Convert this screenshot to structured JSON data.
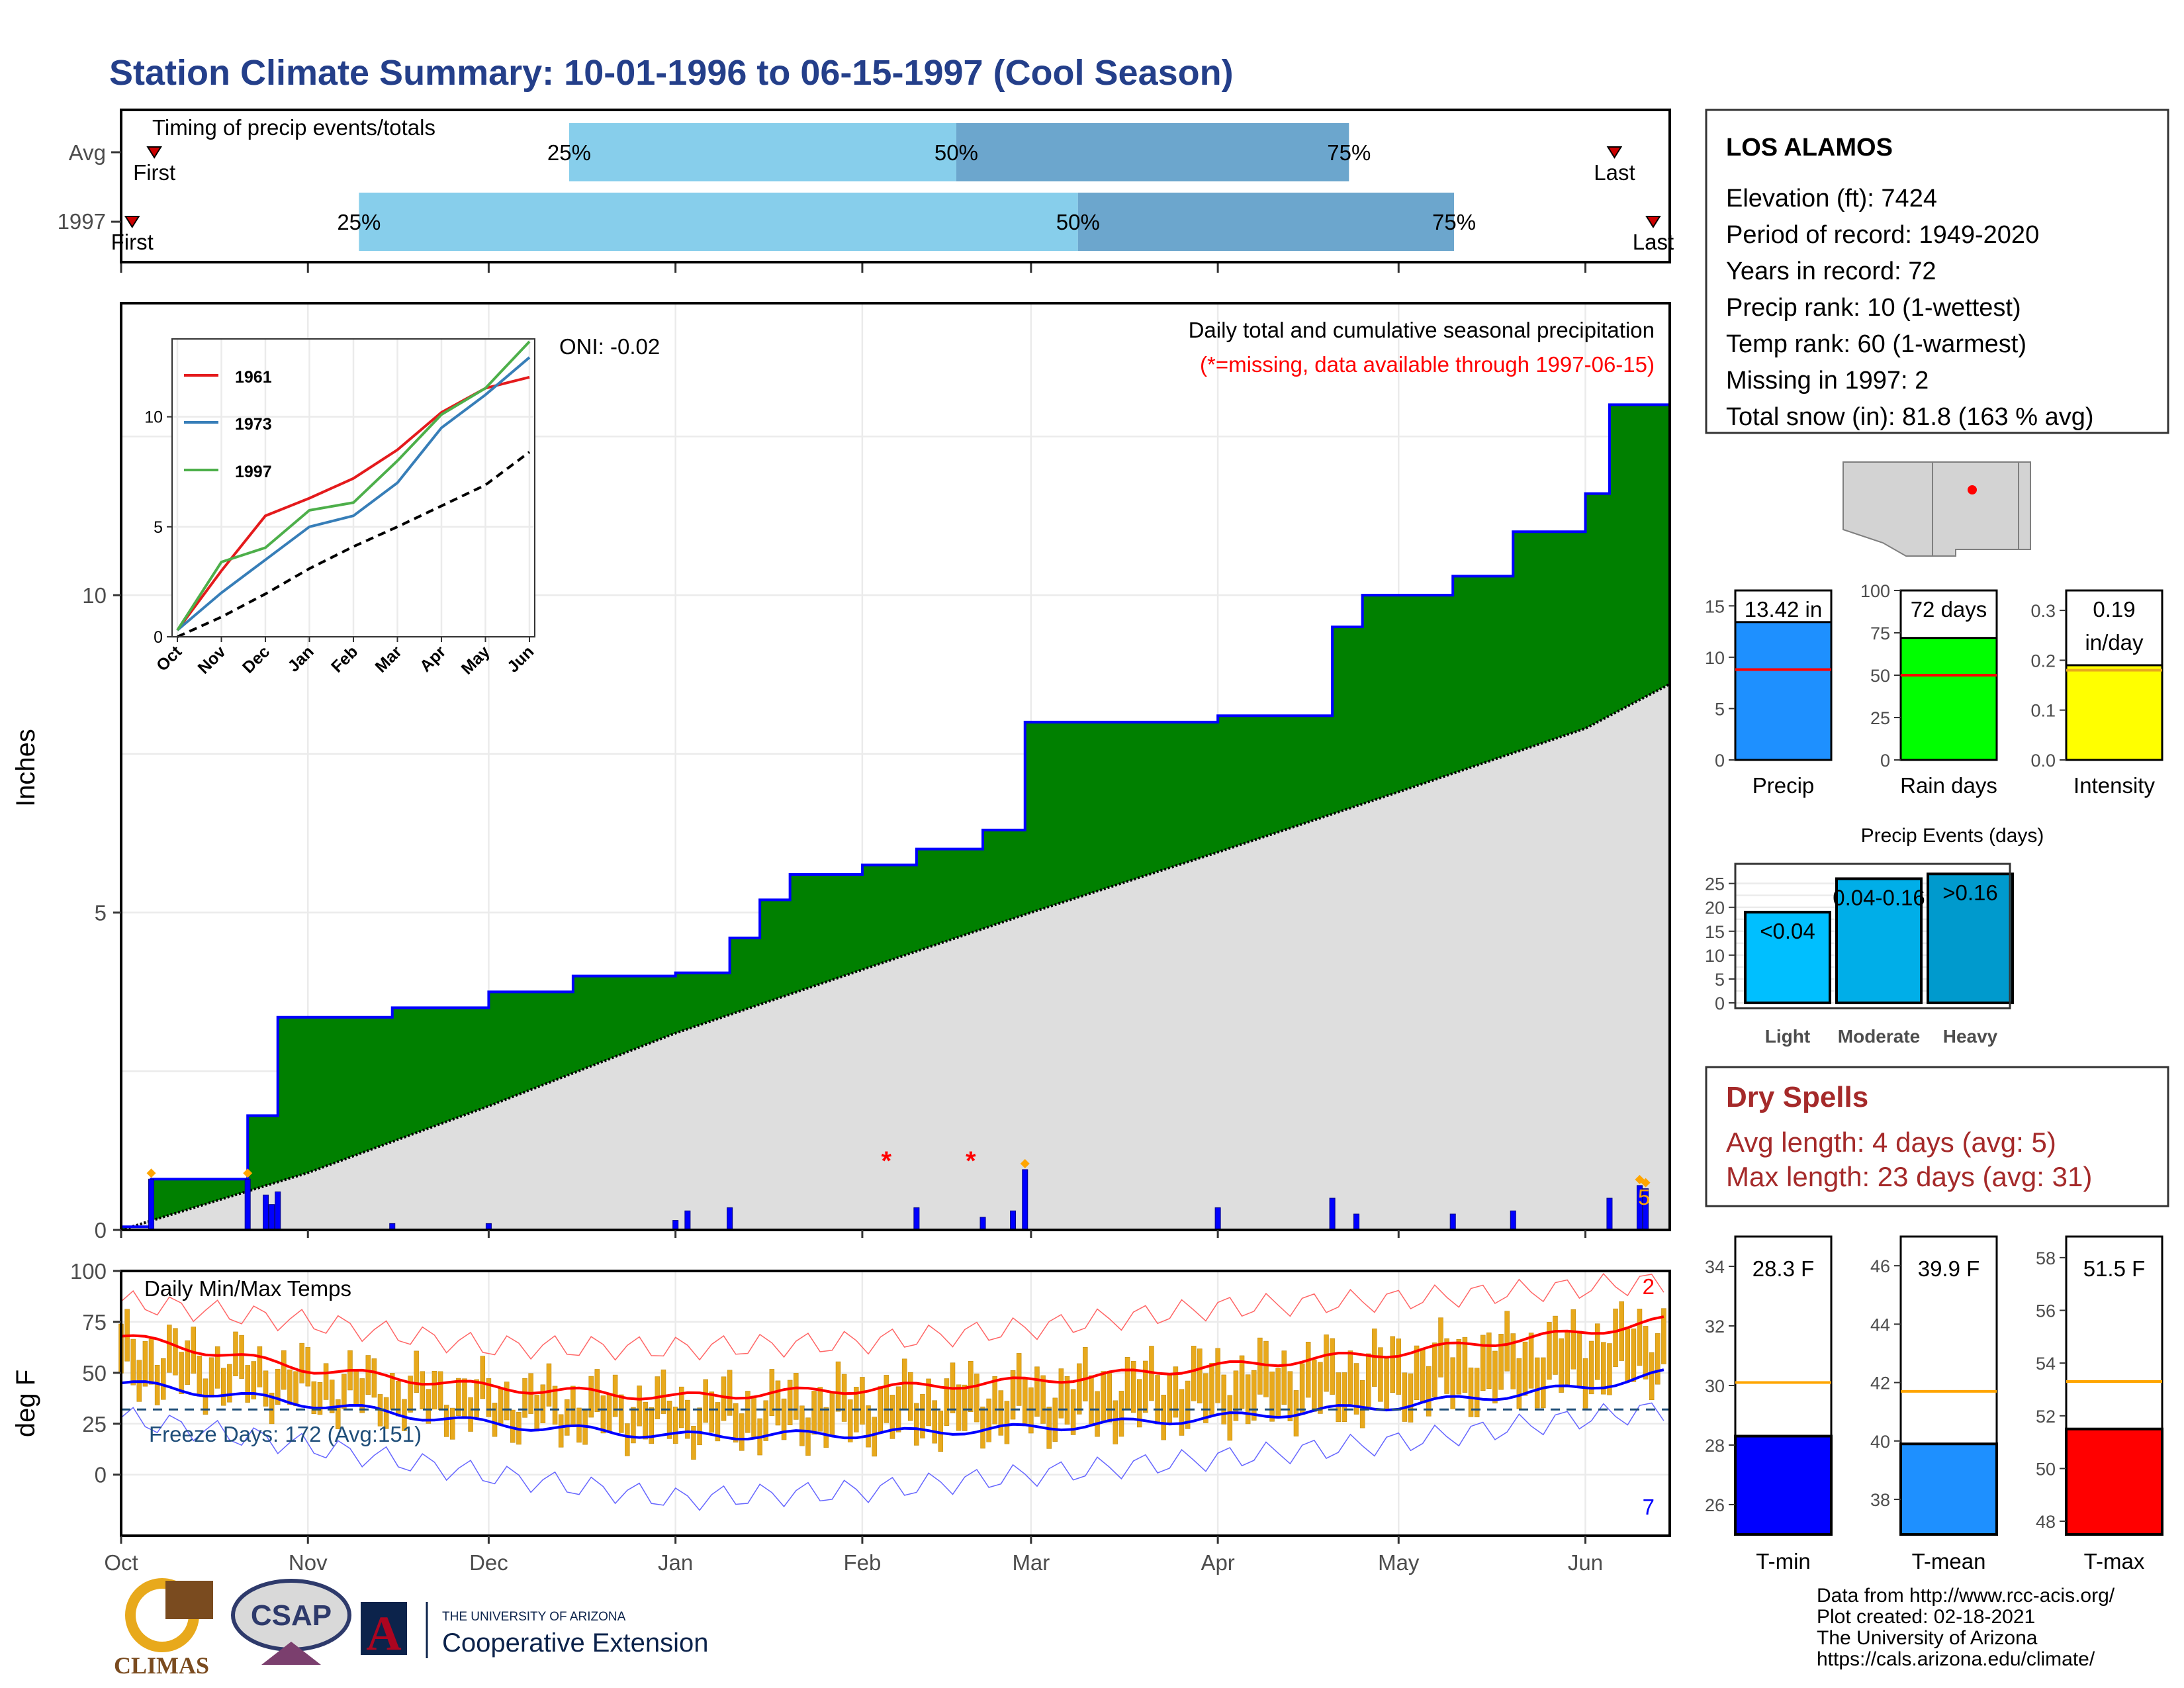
{
  "title": "Station Climate Summary: 10-01-1996 to 06-15-1997 (Cool Season)",
  "timing": {
    "title": "Timing of precip events/totals",
    "rows": [
      {
        "label": "Avg",
        "first_label": "First",
        "last_label": "Last",
        "q25_label": "25%",
        "q50_label": "50%",
        "q75_label": "75%",
        "first_day": 6,
        "q25_day": 81,
        "q50_day": 151,
        "q75_day": 222,
        "last_day": 270
      },
      {
        "label": "1997",
        "first_label": "First",
        "last_label": "Last",
        "q25_label": "25%",
        "q50_label": "50%",
        "q75_label": "75%",
        "first_day": 2,
        "q25_day": 43,
        "q50_day": 173,
        "q75_day": 241,
        "last_day": 277
      }
    ]
  },
  "precip_panel": {
    "ylabel": "Inches",
    "legend_line1": "Daily total and cumulative seasonal precipitation",
    "legend_line2": "(*=missing, data available through 1997-06-15)",
    "oni_label": "ONI: -0.02",
    "count_label": "5",
    "y_ticks": [
      "0",
      "5",
      "10"
    ],
    "month_labels": [
      "Oct",
      "Nov",
      "Dec",
      "Jan",
      "Feb",
      "Mar",
      "Apr",
      "May",
      "Jun"
    ]
  },
  "inset": {
    "legend": [
      "1961",
      "1973",
      "1997"
    ],
    "y_ticks": [
      "0",
      "5",
      "10"
    ],
    "month_labels": [
      "Oct",
      "Nov",
      "Dec",
      "Jan",
      "Feb",
      "Mar",
      "Apr",
      "May",
      "Jun"
    ]
  },
  "temp_panel": {
    "ylabel": "deg F",
    "title": "Daily Min/Max Temps",
    "freeze_label": "Freeze Days: 172 (Avg:151)",
    "count_high": "2",
    "count_low": "7",
    "y_ticks": [
      "0",
      "25",
      "50",
      "75",
      "100"
    ],
    "month_labels": [
      "Oct",
      "Nov",
      "Dec",
      "Jan",
      "Feb",
      "Mar",
      "Apr",
      "May",
      "Jun"
    ]
  },
  "station": {
    "name": "LOS ALAMOS",
    "lines": [
      "Elevation (ft): 7424",
      "Period of record: 1949-2020",
      "Years in record: 72",
      "Precip rank: 10 (1-wettest)",
      "Temp rank: 60 (1-warmest)",
      "Missing in 1997: 2",
      "Total snow (in): 81.8 (163 % avg)"
    ]
  },
  "mini_bars": [
    {
      "name": "Precip",
      "value_label": "13.42 in",
      "ticks": [
        "0",
        "5",
        "10",
        "15"
      ],
      "color": "#1e90ff"
    },
    {
      "name": "Rain days",
      "value_label": "72 days",
      "ticks": [
        "0",
        "25",
        "50",
        "75",
        "100"
      ],
      "color": "#00ff00"
    },
    {
      "name": "Intensity",
      "value_label1": "0.19",
      "value_label2": "in/day",
      "ticks": [
        "0.0",
        "0.1",
        "0.2",
        "0.3"
      ],
      "color": "#ffff00"
    }
  ],
  "events": {
    "title": "Precip Events (days)",
    "ticks": [
      "0",
      "5",
      "10",
      "15",
      "20",
      "25"
    ],
    "categories": [
      "Light",
      "Moderate",
      "Heavy"
    ],
    "labels": [
      "<0.04",
      "0.04-0.16",
      ">0.16"
    ]
  },
  "dry_spells": {
    "title": "Dry Spells",
    "line1": "Avg length: 4 days (avg: 5)",
    "line2": "Max length: 23 days (avg: 31)"
  },
  "temp_bars": [
    {
      "name": "T-min",
      "value_label": "28.3 F",
      "ticks": [
        "26",
        "28",
        "30",
        "32",
        "34"
      ],
      "color": "#0000ff"
    },
    {
      "name": "T-mean",
      "value_label": "39.9 F",
      "ticks": [
        "38",
        "40",
        "42",
        "44",
        "46"
      ],
      "color": "#1e90ff"
    },
    {
      "name": "T-max",
      "value_label": "51.5 F",
      "ticks": [
        "48",
        "50",
        "52",
        "54",
        "56",
        "58"
      ],
      "color": "#ff0000"
    }
  ],
  "footer": [
    "Data from http://www.rcc-acis.org/",
    "Plot created: 02-18-2021",
    "The University of Arizona",
    "https://cals.arizona.edu/climate/"
  ],
  "logos": {
    "climas": "CLIMAS",
    "csap": "CSAP",
    "ua_small": "THE UNIVERSITY OF ARIZONA",
    "ua_big": "Cooperative Extension",
    "ua_letter": "A"
  },
  "chart_data": [
    {
      "type": "area",
      "title": "Daily total and cumulative seasonal precipitation",
      "ylabel": "Inches",
      "ylim": [
        0,
        14.6
      ],
      "x_range": [
        "1996-10-01",
        "1997-06-15"
      ],
      "observed_cumulative": {
        "x": [
          "1996-10-01",
          "1996-10-06",
          "1996-10-22",
          "1996-10-27",
          "1996-11-15",
          "1996-12-01",
          "1996-12-15",
          "1997-01-01",
          "1997-01-10",
          "1997-01-15",
          "1997-01-20",
          "1997-02-01",
          "1997-02-10",
          "1997-02-21",
          "1997-02-28",
          "1997-04-01",
          "1997-04-20",
          "1997-04-25",
          "1997-05-10",
          "1997-05-20",
          "1997-06-01",
          "1997-06-05",
          "1997-06-15"
        ],
        "y": [
          0.05,
          0.8,
          1.8,
          3.35,
          3.5,
          3.75,
          4.0,
          4.05,
          4.6,
          5.2,
          5.6,
          5.75,
          6.0,
          6.3,
          8.0,
          8.1,
          9.5,
          10.0,
          10.3,
          11.0,
          11.6,
          13.0,
          13.42
        ]
      },
      "average_cumulative": {
        "x": [
          "1996-10-01",
          "1996-11-01",
          "1996-12-01",
          "1997-01-01",
          "1997-02-01",
          "1997-03-01",
          "1997-04-01",
          "1997-05-01",
          "1997-06-01",
          "1997-06-15"
        ],
        "y": [
          0,
          0.9,
          1.95,
          3.1,
          4.1,
          5.0,
          5.95,
          6.9,
          7.9,
          8.6
        ]
      },
      "daily_precip_events": {
        "x": [
          "1996-10-06",
          "1996-10-22",
          "1996-10-25",
          "1996-10-26",
          "1996-10-27",
          "1996-11-15",
          "1996-12-01",
          "1997-01-01",
          "1997-01-03",
          "1997-01-10",
          "1997-02-10",
          "1997-02-21",
          "1997-02-26",
          "1997-02-28",
          "1997-04-01",
          "1997-04-20",
          "1997-04-24",
          "1997-05-10",
          "1997-05-20",
          "1997-06-05",
          "1997-06-10",
          "1997-06-11"
        ],
        "y": [
          0.8,
          0.8,
          0.55,
          0.4,
          0.6,
          0.1,
          0.1,
          0.15,
          0.3,
          0.35,
          0.35,
          0.2,
          0.3,
          0.95,
          0.35,
          0.5,
          0.25,
          0.25,
          0.3,
          0.5,
          0.7,
          0.65
        ]
      },
      "missing_days": [
        "1997-02-05",
        "1997-02-19"
      ]
    },
    {
      "type": "line",
      "title": "inset cumulative precipitation",
      "ylim": [
        0,
        13.42
      ],
      "series": [
        {
          "name": "1961",
          "x": [
            "Oct",
            "Nov",
            "Dec",
            "Jan",
            "Feb",
            "Mar",
            "Apr",
            "May",
            "Jun"
          ],
          "values": [
            0.3,
            3.0,
            5.5,
            6.3,
            7.2,
            8.5,
            10.2,
            11.3,
            11.8
          ]
        },
        {
          "name": "1973",
          "x": [
            "Oct",
            "Nov",
            "Dec",
            "Jan",
            "Feb",
            "Mar",
            "Apr",
            "May",
            "Jun"
          ],
          "values": [
            0.3,
            2.0,
            3.5,
            5.0,
            5.5,
            7.0,
            9.5,
            11.0,
            12.7
          ]
        },
        {
          "name": "1997",
          "x": [
            "Oct",
            "Nov",
            "Dec",
            "Jan",
            "Feb",
            "Mar",
            "Apr",
            "May",
            "Jun"
          ],
          "values": [
            0.3,
            3.4,
            4.05,
            5.75,
            6.1,
            8.0,
            10.1,
            11.3,
            13.42
          ]
        },
        {
          "name": "",
          "x": [
            "Oct",
            "Nov",
            "Dec",
            "Jan",
            "Feb",
            "Mar",
            "Apr",
            "May",
            "Jun"
          ],
          "values": [
            0,
            0.9,
            1.95,
            3.1,
            4.1,
            5.0,
            5.95,
            6.9,
            8.4
          ]
        }
      ]
    },
    {
      "type": "line",
      "title": "Daily Min/Max Temps",
      "ylabel": "deg F",
      "ylim": [
        -30,
        100
      ],
      "series": [
        {
          "name": "",
          "x": [
            "1996-10-01",
            "1996-11-01",
            "1996-12-01",
            "1997-01-01",
            "1997-02-01",
            "1997-03-01",
            "1997-04-01",
            "1997-05-01",
            "1997-06-01",
            "1997-06-15"
          ],
          "values": [
            68,
            52,
            43,
            38,
            42,
            46,
            53,
            60,
            70,
            76
          ]
        },
        {
          "name": "",
          "x": [
            "1996-10-01",
            "1996-11-01",
            "1996-12-01",
            "1997-01-01",
            "1997-02-01",
            "1997-03-01",
            "1997-04-01",
            "1997-05-01",
            "1997-06-01",
            "1997-06-15"
          ],
          "values": [
            45,
            35,
            25,
            19,
            20,
            23,
            28,
            34,
            43,
            50
          ]
        },
        {
          "name": "",
          "x": [
            "1996-10-01",
            "1996-11-01",
            "1996-12-01",
            "1997-01-01",
            "1997-02-01",
            "1997-03-01",
            "1997-04-01",
            "1997-05-01",
            "1997-06-01",
            "1997-06-15"
          ],
          "values": [
            85,
            75,
            63,
            62,
            65,
            72,
            82,
            86,
            92,
            95
          ]
        },
        {
          "name": "",
          "x": [
            "1996-10-01",
            "1996-11-01",
            "1996-12-01",
            "1997-01-01",
            "1997-02-01",
            "1997-03-01",
            "1997-04-01",
            "1997-05-01",
            "1997-06-01",
            "1997-06-15"
          ],
          "values": [
            28,
            14,
            0,
            -12,
            -8,
            0,
            8,
            16,
            28,
            32
          ]
        }
      ],
      "freeze_line": 32
    },
    {
      "type": "bar",
      "title": "Precip Events (days)",
      "categories": [
        "Light",
        "Moderate",
        "Heavy"
      ],
      "values": [
        19,
        26,
        27
      ],
      "ylim": [
        0,
        28
      ]
    },
    {
      "type": "bar",
      "categories": [
        "Precip",
        "Rain days",
        "Intensity"
      ],
      "series": [
        {
          "name": "",
          "values": [
            13.42,
            72,
            0.19
          ]
        },
        {
          "name": "",
          "values": [
            8.8,
            50,
            0.18
          ]
        }
      ]
    },
    {
      "type": "bar",
      "categories": [
        "T-min",
        "T-mean",
        "T-max"
      ],
      "series": [
        {
          "name": "",
          "values": [
            28.3,
            39.9,
            51.5
          ]
        },
        {
          "name": "",
          "values": [
            30.1,
            41.7,
            53.3
          ]
        }
      ]
    }
  ],
  "colors": {
    "title": "#243f8a",
    "observed_fill": "#008000",
    "observed_line": "#0000ff",
    "average_fill": "#dedede",
    "bar_light": "#87ceeb",
    "bar_dark": "#6ca6cd",
    "temp_bar": "#e8a91c",
    "dry_title": "#a52a2a"
  }
}
